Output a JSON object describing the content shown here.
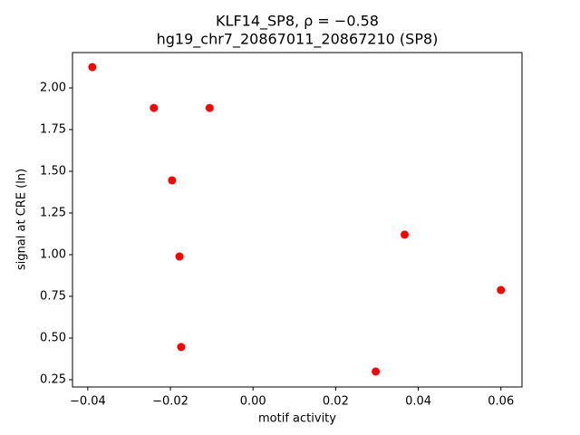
{
  "chart_data": {
    "type": "scatter",
    "title": "KLF14_SP8, ρ = −0.58",
    "subtitle": "hg19_chr7_20867011_20867210 (SP8)",
    "x_label": "motif activity",
    "y_label": "signal at CRE (ln)",
    "color": "#ff0000",
    "x": [
      -0.0389,
      -0.024,
      -0.0105,
      -0.0196,
      -0.0178,
      -0.0174,
      0.0297,
      0.0367,
      0.06
    ],
    "values": [
      2.125,
      1.88,
      1.88,
      1.446,
      0.989,
      0.446,
      0.299,
      1.12,
      0.788
    ],
    "xlim": [
      -0.0437,
      0.0651
    ],
    "ylim": [
      0.2065,
      2.212
    ],
    "xticks": [
      {
        "value": -0.04,
        "label": "−0.04"
      },
      {
        "value": -0.02,
        "label": "−0.02"
      },
      {
        "value": 0,
        "label": "0.00"
      },
      0.02,
      0.04,
      0.06
    ],
    "yticks": [
      0.25,
      {
        "value": 0.5,
        "label": "0.50"
      },
      0.75,
      {
        "value": 1,
        "label": "1.00"
      },
      1.25,
      {
        "value": 1.5,
        "label": "1.50"
      },
      1.75,
      {
        "value": 2,
        "label": "2.00"
      }
    ],
    "grid": false
  }
}
